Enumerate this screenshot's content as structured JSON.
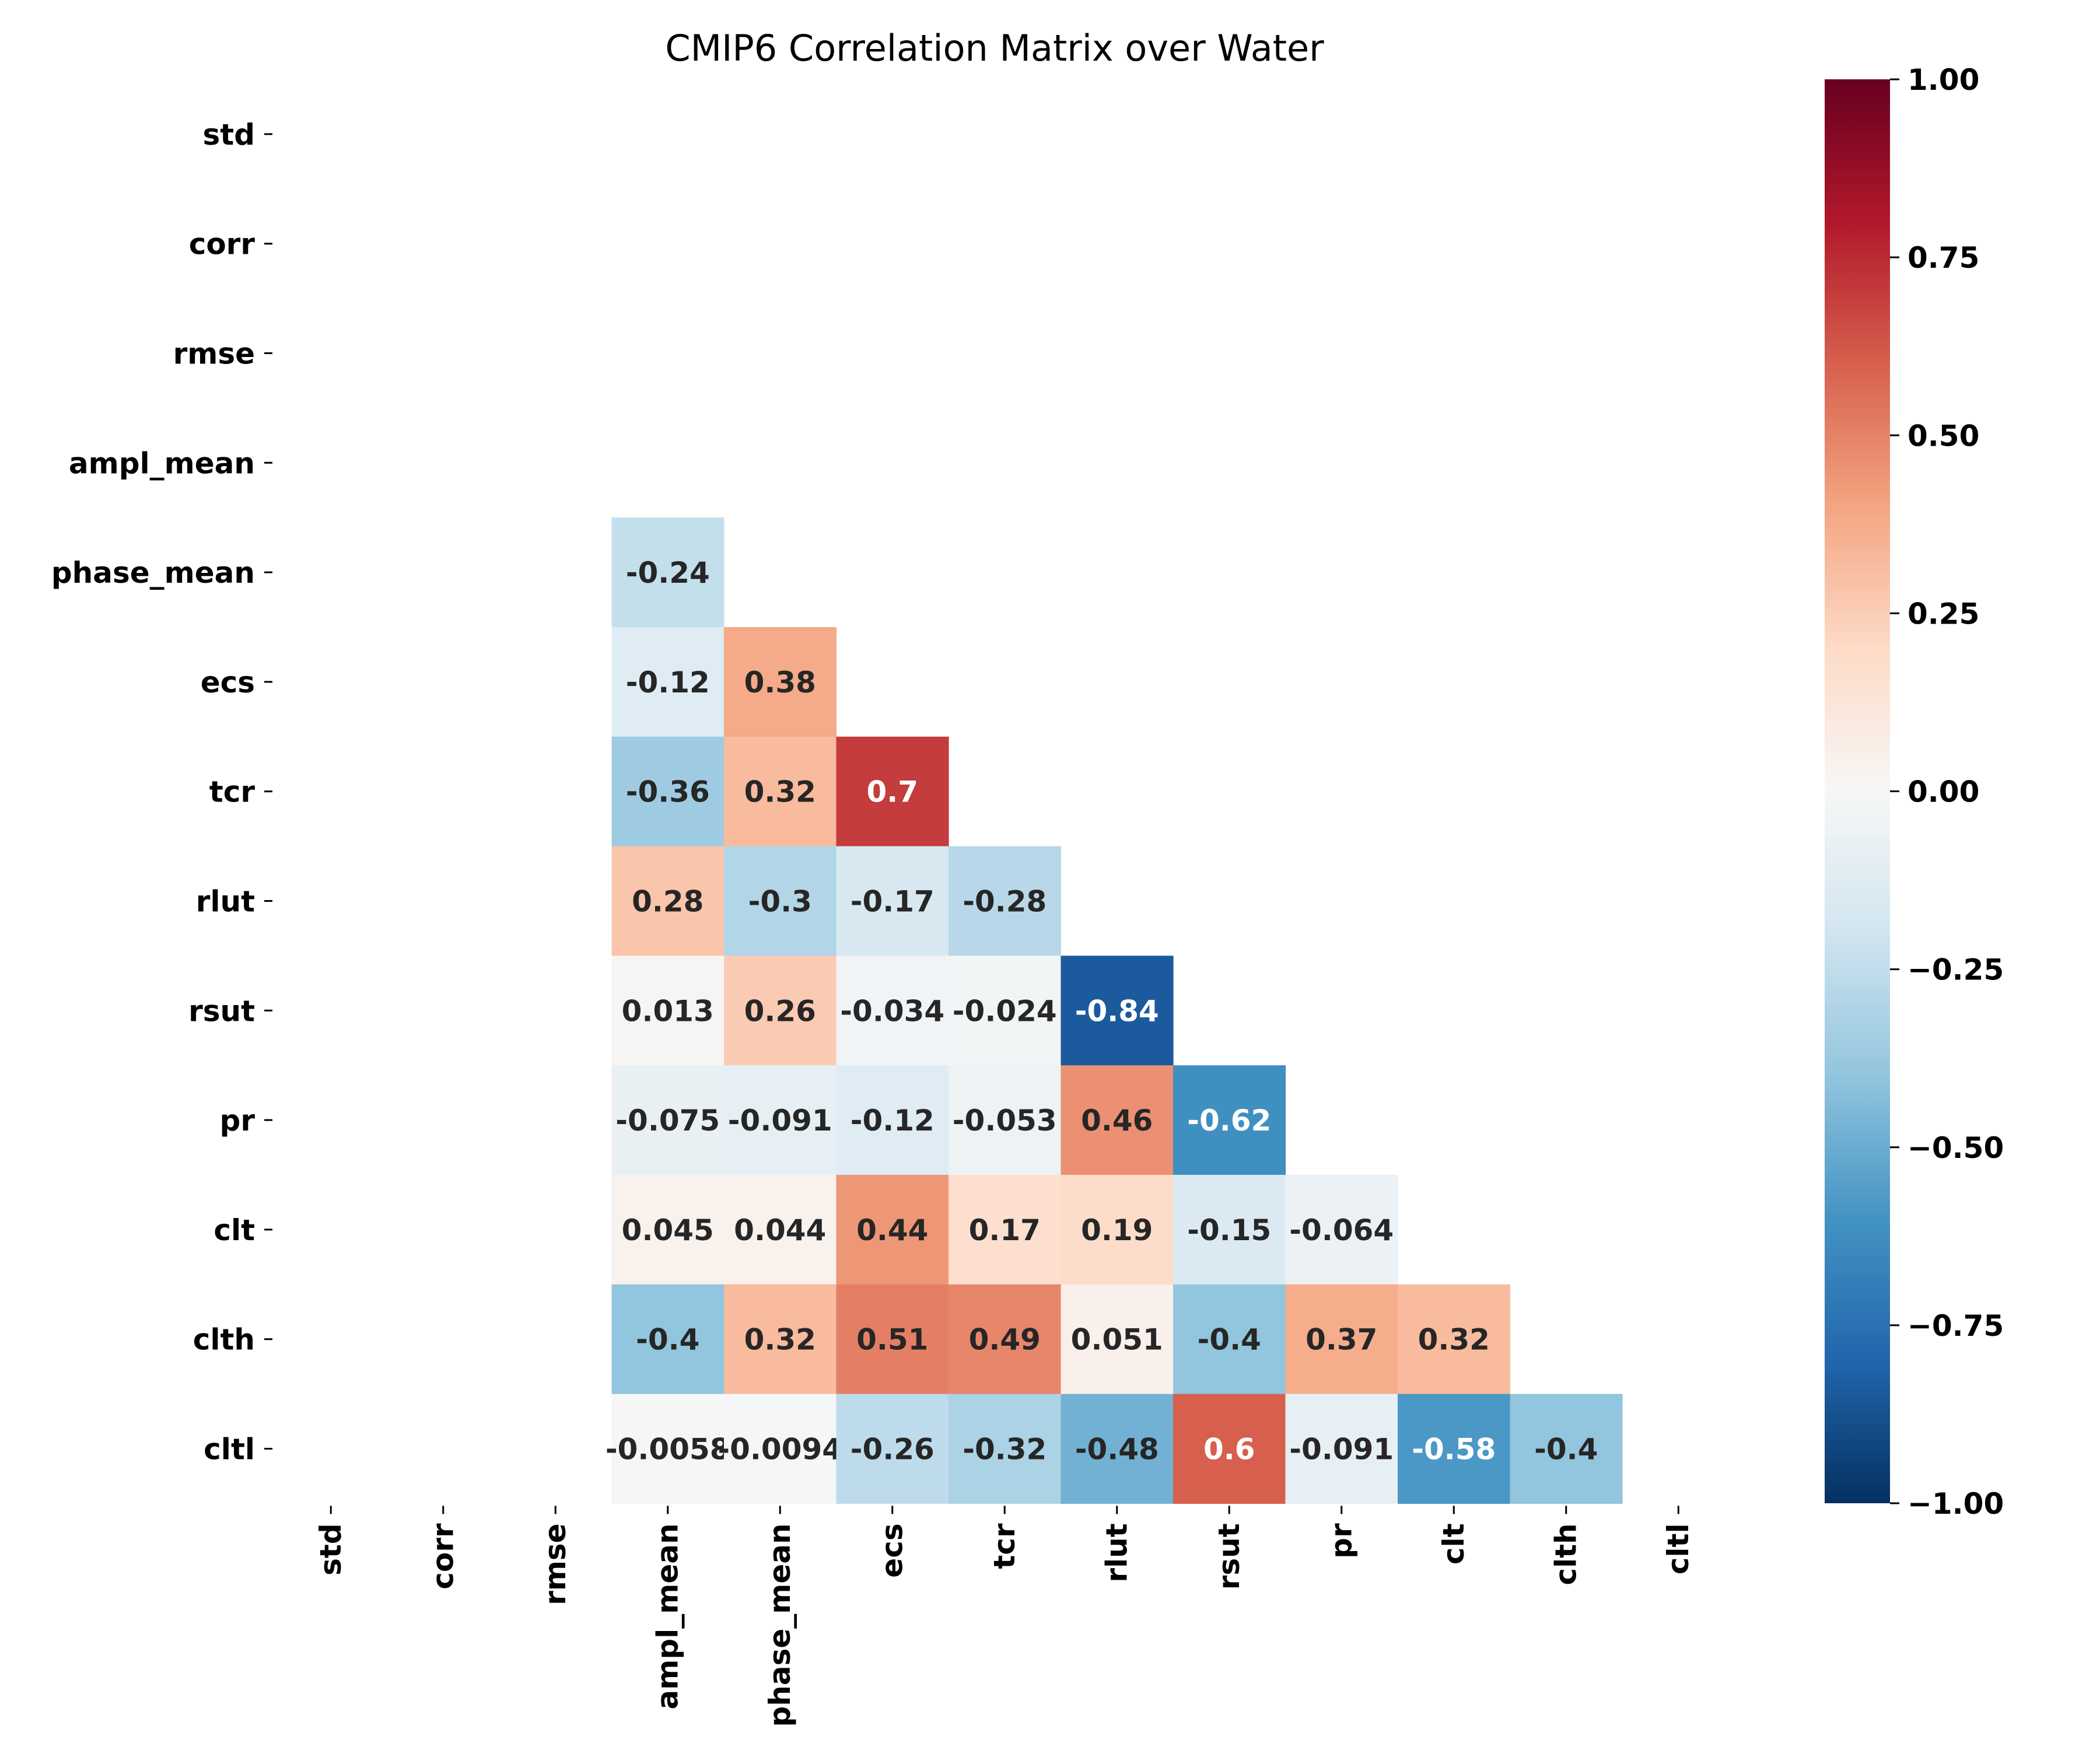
{
  "chart_data": {
    "type": "heatmap",
    "title": "CMIP6 Correlation Matrix over Water",
    "variables": [
      "std",
      "corr",
      "rmse",
      "ampl_mean",
      "phase_mean",
      "ecs",
      "tcr",
      "rlut",
      "rsut",
      "pr",
      "clt",
      "clth",
      "cltl"
    ],
    "mask": "upper-triangle and first three rows/columns hidden",
    "cells": [
      {
        "row": "phase_mean",
        "col": "ampl_mean",
        "value": -0.24,
        "label": "-0.24"
      },
      {
        "row": "ecs",
        "col": "ampl_mean",
        "value": -0.12,
        "label": "-0.12"
      },
      {
        "row": "ecs",
        "col": "phase_mean",
        "value": 0.38,
        "label": "0.38"
      },
      {
        "row": "tcr",
        "col": "ampl_mean",
        "value": -0.36,
        "label": "-0.36"
      },
      {
        "row": "tcr",
        "col": "phase_mean",
        "value": 0.32,
        "label": "0.32"
      },
      {
        "row": "tcr",
        "col": "ecs",
        "value": 0.7,
        "label": "0.7"
      },
      {
        "row": "rlut",
        "col": "ampl_mean",
        "value": 0.28,
        "label": "0.28"
      },
      {
        "row": "rlut",
        "col": "phase_mean",
        "value": -0.3,
        "label": "-0.3"
      },
      {
        "row": "rlut",
        "col": "ecs",
        "value": -0.17,
        "label": "-0.17"
      },
      {
        "row": "rlut",
        "col": "tcr",
        "value": -0.28,
        "label": "-0.28"
      },
      {
        "row": "rsut",
        "col": "ampl_mean",
        "value": 0.013,
        "label": "0.013"
      },
      {
        "row": "rsut",
        "col": "phase_mean",
        "value": 0.26,
        "label": "0.26"
      },
      {
        "row": "rsut",
        "col": "ecs",
        "value": -0.034,
        "label": "-0.034"
      },
      {
        "row": "rsut",
        "col": "tcr",
        "value": -0.024,
        "label": "-0.024"
      },
      {
        "row": "rsut",
        "col": "rlut",
        "value": -0.84,
        "label": "-0.84"
      },
      {
        "row": "pr",
        "col": "ampl_mean",
        "value": -0.075,
        "label": "-0.075"
      },
      {
        "row": "pr",
        "col": "phase_mean",
        "value": -0.091,
        "label": "-0.091"
      },
      {
        "row": "pr",
        "col": "ecs",
        "value": -0.12,
        "label": "-0.12"
      },
      {
        "row": "pr",
        "col": "tcr",
        "value": -0.053,
        "label": "-0.053"
      },
      {
        "row": "pr",
        "col": "rlut",
        "value": 0.46,
        "label": "0.46"
      },
      {
        "row": "pr",
        "col": "rsut",
        "value": -0.62,
        "label": "-0.62"
      },
      {
        "row": "clt",
        "col": "ampl_mean",
        "value": 0.045,
        "label": "0.045"
      },
      {
        "row": "clt",
        "col": "phase_mean",
        "value": 0.044,
        "label": "0.044"
      },
      {
        "row": "clt",
        "col": "ecs",
        "value": 0.44,
        "label": "0.44"
      },
      {
        "row": "clt",
        "col": "tcr",
        "value": 0.17,
        "label": "0.17"
      },
      {
        "row": "clt",
        "col": "rlut",
        "value": 0.19,
        "label": "0.19"
      },
      {
        "row": "clt",
        "col": "rsut",
        "value": -0.15,
        "label": "-0.15"
      },
      {
        "row": "clt",
        "col": "pr",
        "value": -0.064,
        "label": "-0.064"
      },
      {
        "row": "clth",
        "col": "ampl_mean",
        "value": -0.4,
        "label": "-0.4"
      },
      {
        "row": "clth",
        "col": "phase_mean",
        "value": 0.32,
        "label": "0.32"
      },
      {
        "row": "clth",
        "col": "ecs",
        "value": 0.51,
        "label": "0.51"
      },
      {
        "row": "clth",
        "col": "tcr",
        "value": 0.49,
        "label": "0.49"
      },
      {
        "row": "clth",
        "col": "rlut",
        "value": 0.051,
        "label": "0.051"
      },
      {
        "row": "clth",
        "col": "rsut",
        "value": -0.4,
        "label": "-0.4"
      },
      {
        "row": "clth",
        "col": "pr",
        "value": 0.37,
        "label": "0.37"
      },
      {
        "row": "clth",
        "col": "clt",
        "value": 0.32,
        "label": "0.32"
      },
      {
        "row": "cltl",
        "col": "ampl_mean",
        "value": -0.0058,
        "label": "-0.0058"
      },
      {
        "row": "cltl",
        "col": "phase_mean",
        "value": -0.0094,
        "label": "-0.0094"
      },
      {
        "row": "cltl",
        "col": "ecs",
        "value": -0.26,
        "label": "-0.26"
      },
      {
        "row": "cltl",
        "col": "tcr",
        "value": -0.32,
        "label": "-0.32"
      },
      {
        "row": "cltl",
        "col": "rlut",
        "value": -0.48,
        "label": "-0.48"
      },
      {
        "row": "cltl",
        "col": "rsut",
        "value": 0.6,
        "label": "0.6"
      },
      {
        "row": "cltl",
        "col": "pr",
        "value": -0.091,
        "label": "-0.091"
      },
      {
        "row": "cltl",
        "col": "clt",
        "value": -0.58,
        "label": "-0.58"
      },
      {
        "row": "cltl",
        "col": "clth",
        "value": -0.4,
        "label": "-0.4"
      }
    ],
    "colorbar": {
      "colormap": "RdBu_r",
      "range": [
        -1.0,
        1.0
      ],
      "ticks": [
        1.0,
        0.75,
        0.5,
        0.25,
        0.0,
        -0.25,
        -0.5,
        -0.75,
        -1.0
      ],
      "tick_labels": [
        "1.00",
        "0.75",
        "0.50",
        "0.25",
        "0.00",
        "−0.25",
        "−0.50",
        "−0.75",
        "−1.00"
      ],
      "placement": "right"
    },
    "grid": false
  }
}
